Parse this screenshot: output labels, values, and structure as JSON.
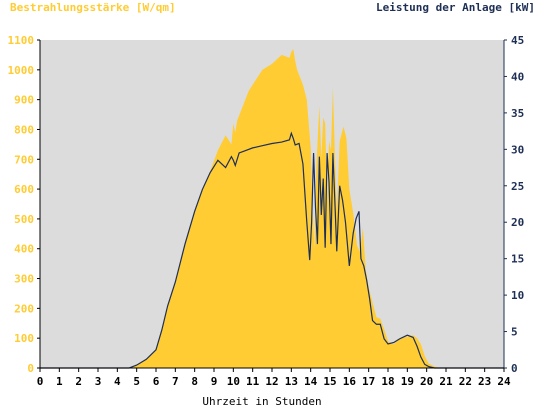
{
  "chart_data": {
    "type": "area",
    "title_left": "Bestrahlungsstärke [W/qm]",
    "title_right": "Leistung der Anlage [kW]",
    "xlabel": "Uhrzeit in Stunden",
    "x_ticks": [
      0,
      1,
      2,
      3,
      4,
      5,
      6,
      7,
      8,
      9,
      10,
      11,
      12,
      13,
      14,
      15,
      16,
      17,
      18,
      19,
      20,
      21,
      22,
      23,
      24
    ],
    "xlim": [
      0,
      24
    ],
    "y_left": {
      "lim": [
        0,
        1100
      ],
      "ticks": [
        0,
        100,
        200,
        300,
        400,
        500,
        600,
        700,
        800,
        900,
        1000,
        1100
      ]
    },
    "y_right": {
      "lim": [
        0,
        45
      ],
      "ticks": [
        0,
        5,
        10,
        15,
        20,
        25,
        30,
        35,
        40,
        45
      ]
    },
    "grid": false,
    "series": [
      {
        "name": "Bestrahlungsstärke [W/qm]",
        "axis": "left",
        "style": "area",
        "color": "#ffcc33",
        "x": [
          0,
          4.6,
          5.0,
          5.5,
          6.0,
          6.3,
          6.6,
          7.0,
          7.5,
          8.0,
          8.4,
          8.8,
          9.2,
          9.6,
          9.9,
          10.0,
          10.1,
          10.2,
          10.5,
          10.8,
          11.0,
          11.5,
          12.0,
          12.5,
          12.9,
          13.0,
          13.1,
          13.2,
          13.3,
          13.6,
          13.8,
          14.0,
          14.1,
          14.2,
          14.3,
          14.45,
          14.55,
          14.65,
          14.75,
          14.85,
          14.95,
          15.05,
          15.15,
          15.25,
          15.35,
          15.5,
          15.7,
          15.85,
          16.0,
          16.2,
          16.4,
          16.55,
          16.7,
          16.85,
          17.0,
          17.2,
          17.4,
          17.6,
          17.8,
          18.0,
          18.3,
          18.6,
          19.0,
          19.3,
          19.5,
          19.7,
          19.9,
          20.1,
          20.4,
          20.7,
          24
        ],
        "values": [
          0,
          0,
          10,
          30,
          60,
          130,
          210,
          290,
          420,
          530,
          600,
          660,
          730,
          780,
          750,
          820,
          790,
          830,
          880,
          930,
          950,
          1000,
          1020,
          1050,
          1040,
          1060,
          1070,
          1030,
          1000,
          950,
          900,
          740,
          520,
          400,
          680,
          880,
          700,
          840,
          820,
          560,
          760,
          730,
          940,
          720,
          520,
          760,
          810,
          770,
          600,
          520,
          410,
          390,
          470,
          330,
          270,
          220,
          170,
          165,
          130,
          90,
          80,
          100,
          105,
          110,
          100,
          80,
          40,
          15,
          5,
          0,
          0
        ]
      },
      {
        "name": "Leistung der Anlage [kW]",
        "axis": "right",
        "style": "line",
        "color": "#1e2f55",
        "x": [
          0,
          4.6,
          5.0,
          5.5,
          6.0,
          6.3,
          6.6,
          7.0,
          7.5,
          8.0,
          8.4,
          8.8,
          9.2,
          9.6,
          9.9,
          10.0,
          10.1,
          10.3,
          10.6,
          11.0,
          11.5,
          12.0,
          12.5,
          12.9,
          13.0,
          13.1,
          13.2,
          13.4,
          13.6,
          13.8,
          13.95,
          14.05,
          14.15,
          14.25,
          14.35,
          14.45,
          14.55,
          14.65,
          14.75,
          14.85,
          14.95,
          15.05,
          15.15,
          15.25,
          15.35,
          15.5,
          15.65,
          15.8,
          16.0,
          16.2,
          16.35,
          16.5,
          16.6,
          16.75,
          16.9,
          17.05,
          17.2,
          17.4,
          17.6,
          17.8,
          18.0,
          18.3,
          18.6,
          19.0,
          19.3,
          19.5,
          19.7,
          19.9,
          20.1,
          20.4,
          20.7,
          24
        ],
        "values": [
          0,
          0,
          0.4,
          1.2,
          2.5,
          5.2,
          8.5,
          11.8,
          17.0,
          21.5,
          24.5,
          26.8,
          28.5,
          27.5,
          29.0,
          28.5,
          27.8,
          29.5,
          29.8,
          30.2,
          30.5,
          30.8,
          31.0,
          31.3,
          32.2,
          31.5,
          30.6,
          30.8,
          28.0,
          20.0,
          14.8,
          20.0,
          29.5,
          22.0,
          17.0,
          29.0,
          21.0,
          26.0,
          16.5,
          29.5,
          25.5,
          17.0,
          29.5,
          23.0,
          16.0,
          25.0,
          23.0,
          20.0,
          14.0,
          18.5,
          20.5,
          21.5,
          15.0,
          14.0,
          12.0,
          9.5,
          6.5,
          6.0,
          6.0,
          4.0,
          3.3,
          3.5,
          4.0,
          4.5,
          4.2,
          3.0,
          1.5,
          0.5,
          0.2,
          0,
          0,
          0
        ]
      }
    ]
  },
  "colors": {
    "plot_background": "#dcdcdc",
    "left_axis_text": "#ffcc33",
    "right_axis_text": "#1e2f55",
    "area_fill": "#ffcc33",
    "power_line": "#1e2f55"
  }
}
